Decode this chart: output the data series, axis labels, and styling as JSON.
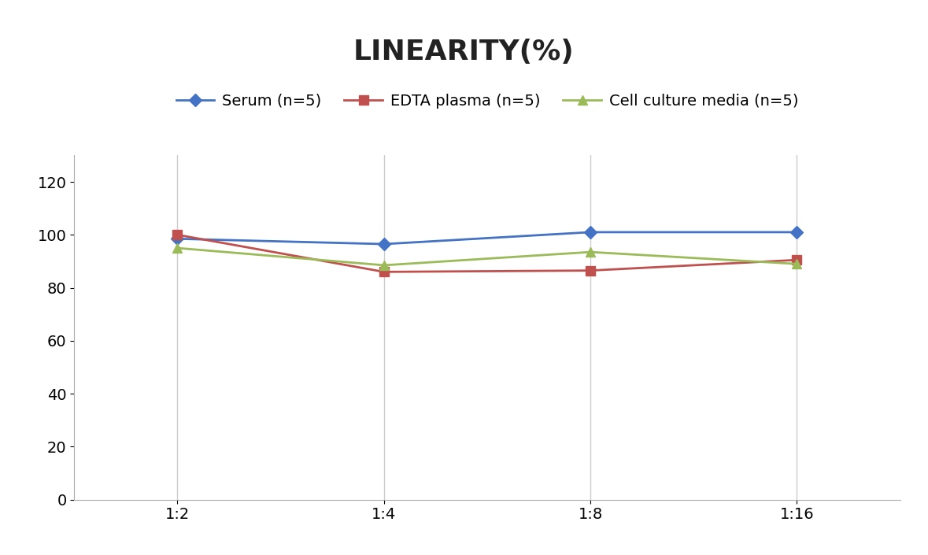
{
  "title": "LINEARITY(%)",
  "title_fontsize": 26,
  "title_fontweight": "bold",
  "x_categories": [
    "1:2",
    "1:4",
    "1:8",
    "1:16"
  ],
  "series": [
    {
      "label": "Serum (n=5)",
      "values": [
        98.5,
        96.5,
        101.0,
        101.0
      ],
      "color": "#4472C4",
      "marker": "D",
      "markersize": 8,
      "linewidth": 2.0
    },
    {
      "label": "EDTA plasma (n=5)",
      "values": [
        100.0,
        86.0,
        86.5,
        90.5
      ],
      "color": "#C0504D",
      "marker": "s",
      "markersize": 8,
      "linewidth": 2.0
    },
    {
      "label": "Cell culture media (n=5)",
      "values": [
        95.0,
        88.5,
        93.5,
        89.0
      ],
      "color": "#9BBB59",
      "marker": "^",
      "markersize": 8,
      "linewidth": 2.0
    }
  ],
  "ylim": [
    0,
    130
  ],
  "yticks": [
    0,
    20,
    40,
    60,
    80,
    100,
    120
  ],
  "xlabel": "",
  "ylabel": "",
  "background_color": "#ffffff",
  "grid_color": "#cccccc",
  "legend_fontsize": 14,
  "tick_fontsize": 14
}
